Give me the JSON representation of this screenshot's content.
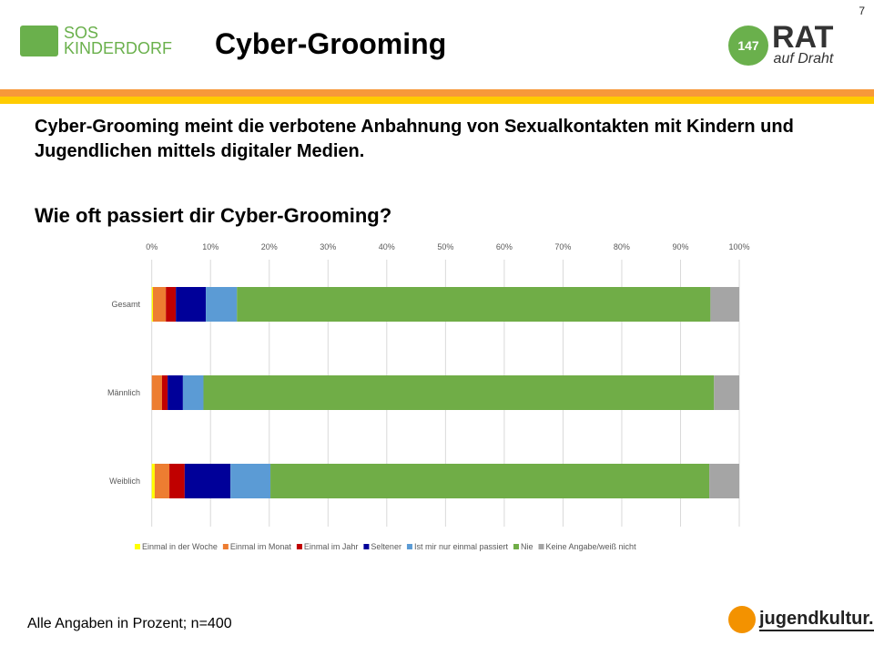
{
  "page_number": "7",
  "logos": {
    "sos": "SOS KINDERDORF",
    "rat_number": "147",
    "rat_main": "RAT",
    "rat_sub": "auf Draht",
    "jugendkultur": "jugendkultur.at"
  },
  "title": "Cyber-Grooming",
  "intro": "Cyber-Grooming meint die verbotene Anbahnung von Sexualkontakten mit Kindern und Jugendlichen mittels digitaler Medien.",
  "question": "Wie oft passiert dir Cyber-Grooming?",
  "footer": "Alle Angaben in Prozent; n=400",
  "colors": {
    "series": [
      "#ffff00",
      "#ed7d31",
      "#c00000",
      "#000099",
      "#5b9bd5",
      "#70ad47",
      "#a5a5a5"
    ]
  },
  "chart_data": {
    "type": "bar",
    "orientation": "horizontal-stacked-100",
    "categories": [
      "Gesamt",
      "Männlich",
      "Weiblich"
    ],
    "xticks": [
      "0%",
      "10%",
      "20%",
      "30%",
      "40%",
      "50%",
      "60%",
      "70%",
      "80%",
      "90%",
      "100%"
    ],
    "xlim": [
      0,
      100
    ],
    "legend_position": "bottom",
    "series": [
      {
        "name": "Einmal in der Woche",
        "values": [
          0.2,
          0,
          0.5
        ]
      },
      {
        "name": "Einmal im Monat",
        "values": [
          2.2,
          1.75,
          2.5
        ]
      },
      {
        "name": "Einmal im Jahr",
        "values": [
          1.7,
          0.95,
          2.6
        ]
      },
      {
        "name": "Seltener",
        "values": [
          5.1,
          2.6,
          7.8
        ]
      },
      {
        "name": "Ist mir nur einmal passiert",
        "values": [
          5.3,
          3.5,
          6.8
        ]
      },
      {
        "name": "Nie",
        "values": [
          80.6,
          86.9,
          74.7
        ]
      },
      {
        "name": "Keine Angabe/weiß nicht",
        "values": [
          4.9,
          4.3,
          5.1
        ]
      }
    ]
  }
}
